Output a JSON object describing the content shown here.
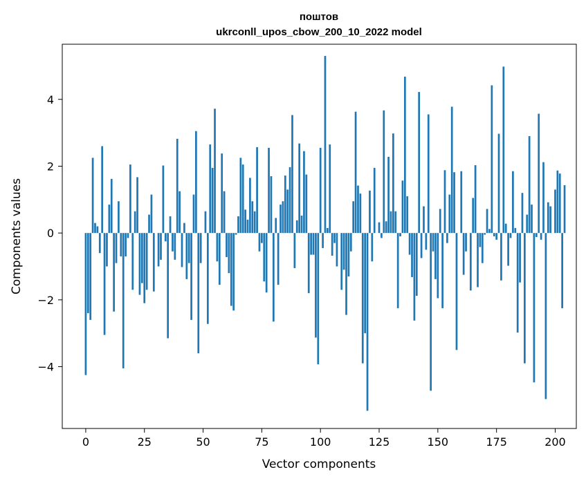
{
  "chart_data": {
    "type": "bar",
    "title_line1": "поштов",
    "title_line2": "ukrconll_upos_cbow_200_10_2022 model",
    "xlabel": "Vector components",
    "ylabel": "Components values",
    "xlim": [
      -10,
      209
    ],
    "ylim": [
      -5.85,
      5.65
    ],
    "xticks": [
      0,
      25,
      50,
      75,
      100,
      125,
      150,
      175,
      200
    ],
    "yticks": [
      -4,
      -2,
      0,
      2,
      4
    ],
    "bar_color": "#1f77b4",
    "grid": false,
    "legend": "none",
    "values": [
      -4.25,
      -2.4,
      -2.6,
      2.25,
      0.3,
      0.2,
      -0.6,
      2.6,
      -3.05,
      -1.0,
      0.85,
      1.62,
      -2.35,
      -0.9,
      0.95,
      -0.7,
      -4.05,
      -0.7,
      -0.15,
      2.05,
      -1.7,
      0.65,
      1.67,
      -1.85,
      -1.5,
      -2.1,
      -1.7,
      0.55,
      1.15,
      -1.75,
      0.0,
      -1.0,
      -0.8,
      2.02,
      -0.25,
      -3.15,
      0.5,
      -0.55,
      -0.8,
      2.82,
      1.25,
      -1.02,
      0.3,
      -1.38,
      -0.9,
      -2.6,
      1.15,
      3.05,
      -3.6,
      -0.9,
      0.0,
      0.65,
      -2.72,
      2.65,
      1.95,
      3.72,
      -0.85,
      -1.55,
      2.38,
      1.25,
      -0.72,
      -1.2,
      -2.18,
      -2.32,
      -0.05,
      0.5,
      2.25,
      2.05,
      0.7,
      0.4,
      1.65,
      0.95,
      0.65,
      2.57,
      -0.55,
      -0.3,
      -1.45,
      -1.78,
      2.55,
      1.7,
      -2.65,
      0.45,
      -1.55,
      0.85,
      0.95,
      1.72,
      1.3,
      1.97,
      3.53,
      -1.05,
      0.38,
      2.68,
      0.52,
      2.45,
      1.75,
      -1.8,
      -0.65,
      -0.65,
      -3.13,
      -3.93,
      2.55,
      -0.45,
      5.3,
      0.15,
      2.65,
      -0.68,
      -0.3,
      -1.0,
      0.0,
      -1.7,
      -1.1,
      -2.45,
      -1.3,
      -0.55,
      0.95,
      3.63,
      1.42,
      1.18,
      -3.9,
      -3.0,
      -5.32,
      1.27,
      -0.85,
      1.95,
      0.0,
      0.32,
      -0.15,
      3.67,
      0.35,
      2.28,
      0.65,
      2.98,
      0.65,
      -2.25,
      -0.1,
      1.57,
      4.68,
      1.1,
      -0.65,
      -1.32,
      -2.62,
      -1.88,
      4.22,
      -0.75,
      0.8,
      -0.5,
      3.55,
      -4.72,
      -0.55,
      -1.38,
      -1.95,
      0.72,
      -2.25,
      1.88,
      -0.3,
      1.15,
      3.78,
      1.82,
      -3.5,
      0.0,
      1.85,
      -1.25,
      -0.55,
      0.0,
      -1.72,
      1.05,
      2.03,
      -1.62,
      -0.42,
      -0.9,
      -0.05,
      0.72,
      0.12,
      4.42,
      -0.1,
      -0.2,
      2.97,
      -1.42,
      4.98,
      0.28,
      -0.98,
      -0.15,
      1.85,
      0.15,
      -2.98,
      -1.48,
      1.2,
      -3.9,
      0.55,
      2.9,
      0.85,
      -4.47,
      -0.12,
      3.57,
      -0.2,
      2.12,
      -4.97,
      0.92,
      0.8,
      0.0,
      1.3,
      1.87,
      1.78,
      -2.25,
      1.43
    ]
  }
}
